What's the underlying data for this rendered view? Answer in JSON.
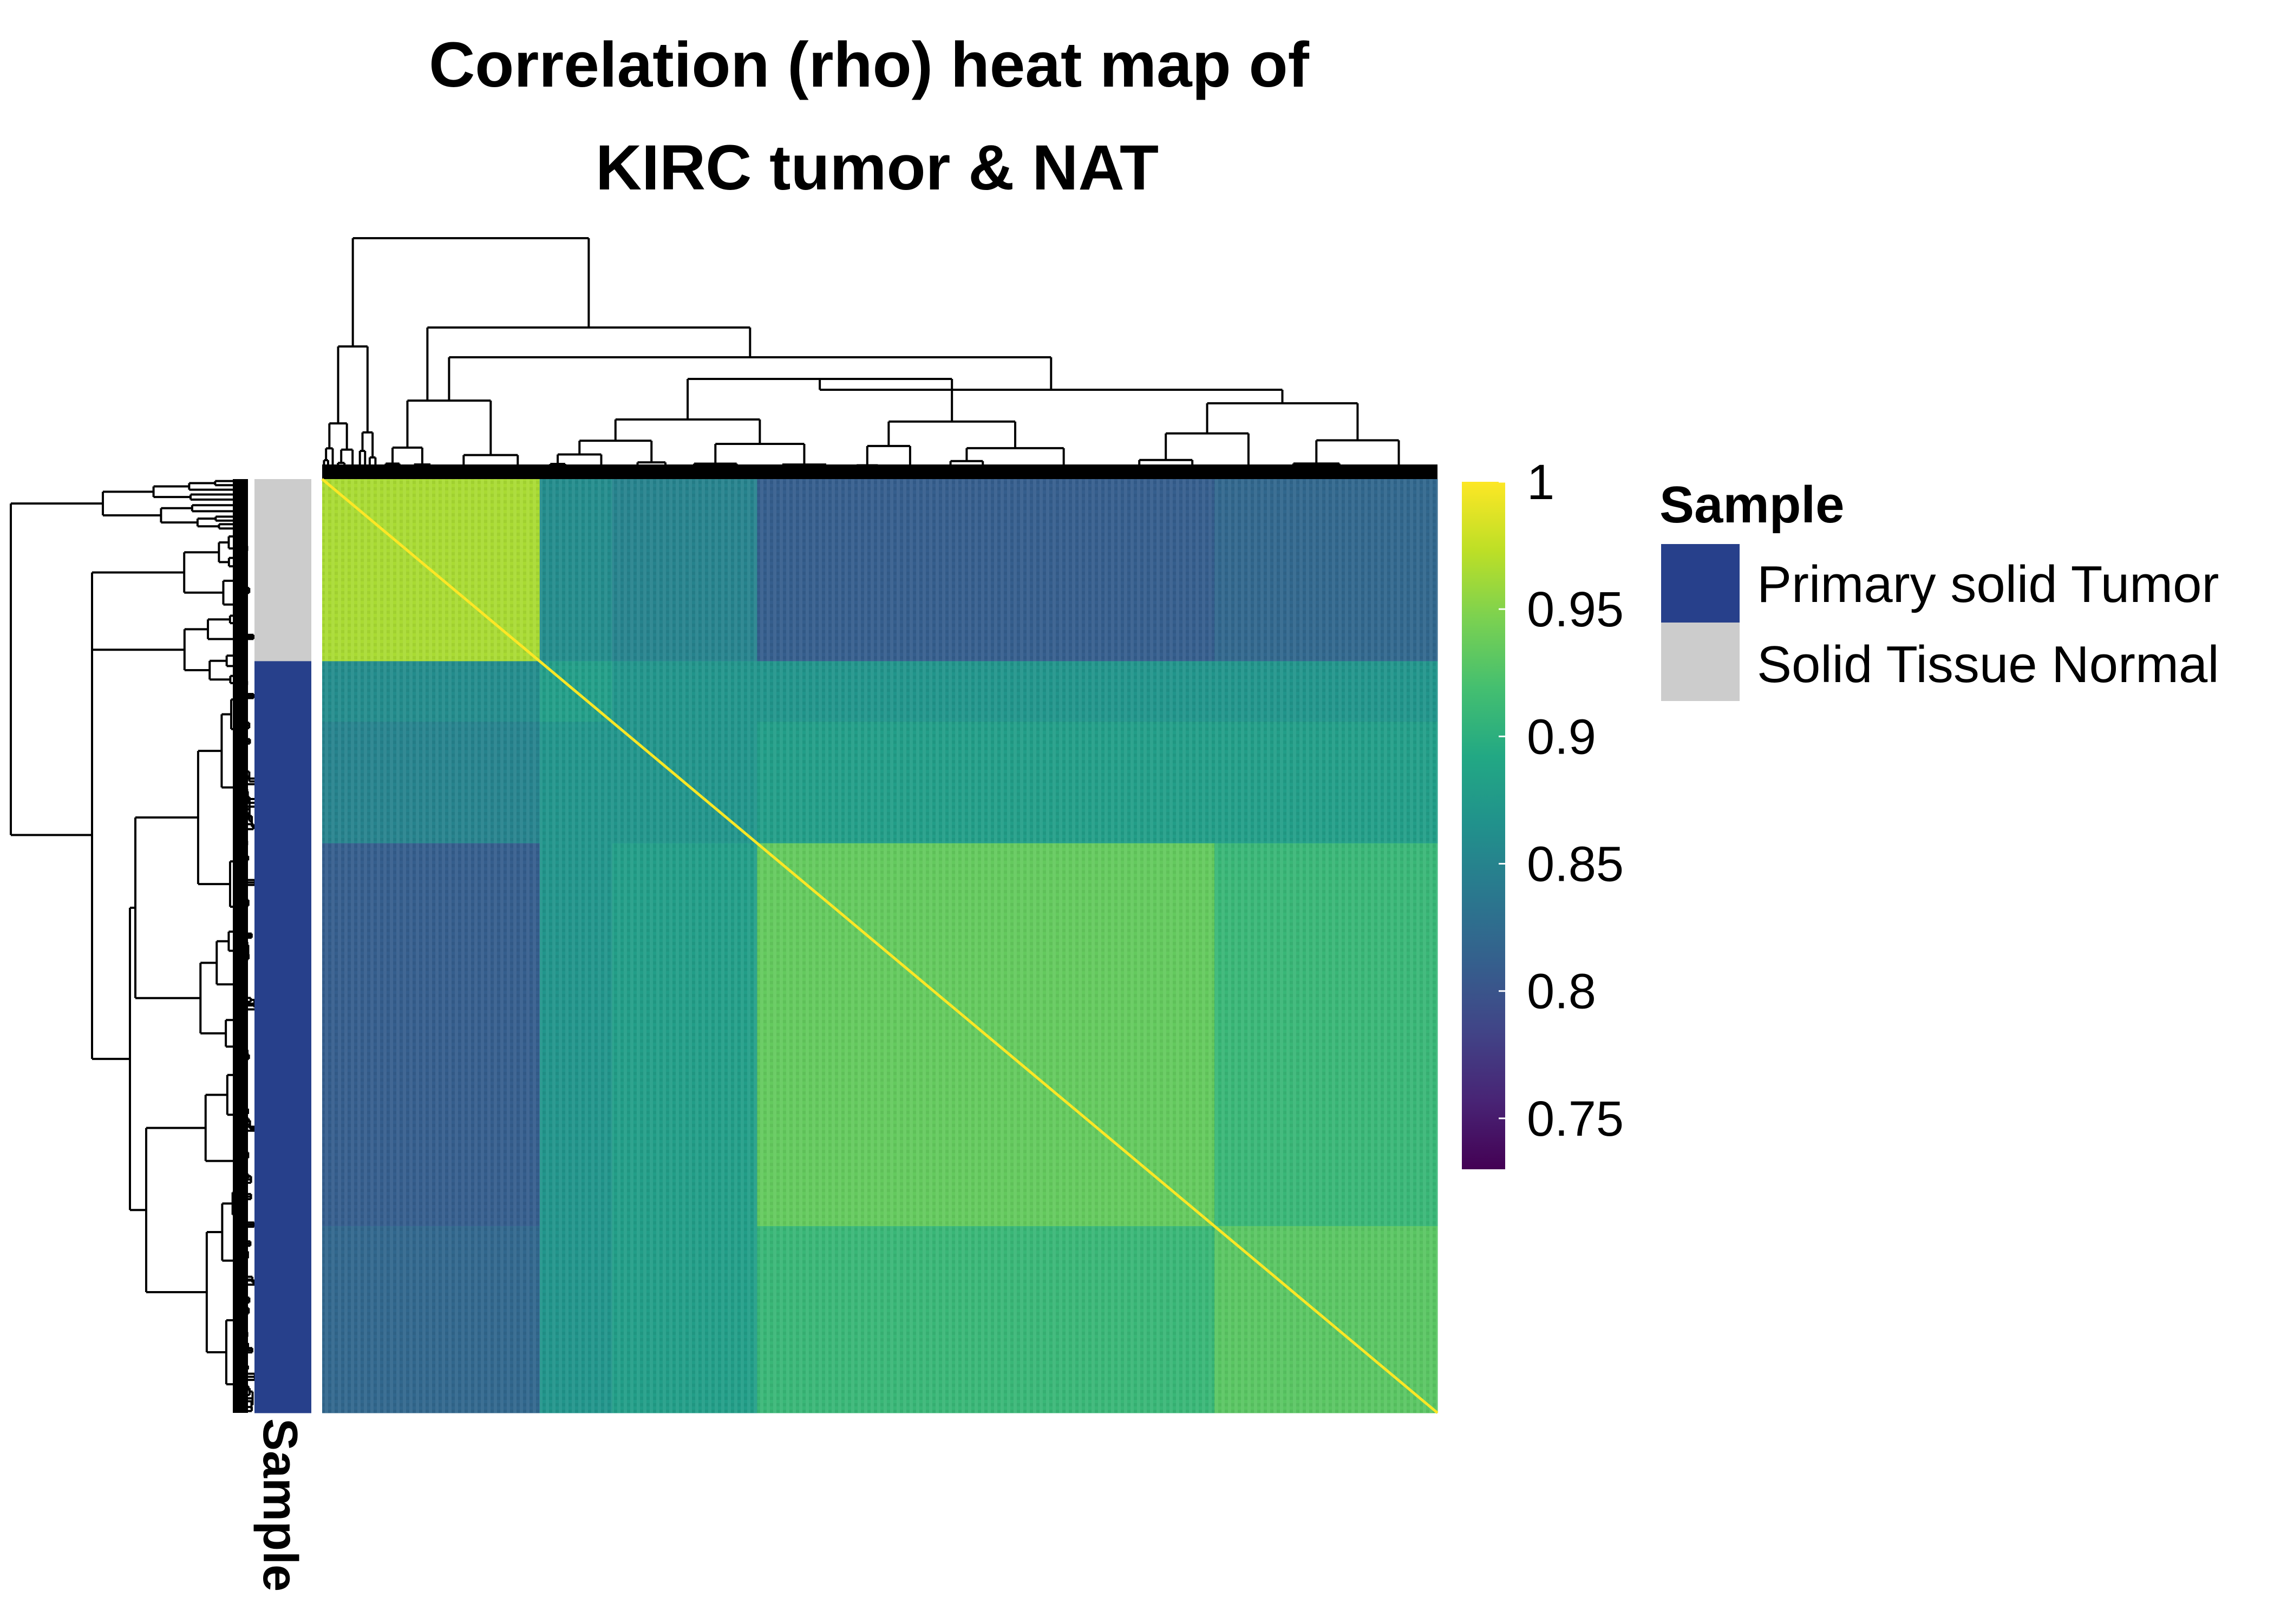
{
  "chart_data": {
    "type": "heatmap",
    "title": {
      "line1": "Correlation (rho) heat map of",
      "line2": "KIRC tumor & NAT"
    },
    "value_name": "rho",
    "color_scale": {
      "name": "viridis",
      "range": [
        0.73,
        1.0
      ],
      "ticks": [
        {
          "value": 1,
          "label": "1"
        },
        {
          "value": 0.95,
          "label": "0.95"
        },
        {
          "value": 0.9,
          "label": "0.9"
        },
        {
          "value": 0.85,
          "label": "0.85"
        },
        {
          "value": 0.8,
          "label": "0.8"
        },
        {
          "value": 0.75,
          "label": "0.75"
        }
      ]
    },
    "annotation": {
      "name": "Sample",
      "legend_title": "Sample",
      "categories": [
        {
          "label": "Primary solid Tumor",
          "color": "#27408b"
        },
        {
          "label": "Solid Tissue Normal",
          "color": "#cccccc"
        }
      ]
    },
    "blocks": [
      {
        "name": "normal-cluster",
        "order_start": 0.0,
        "order_end": 0.195,
        "sample": "Solid Tissue Normal",
        "within_rho": 0.965
      },
      {
        "name": "tumor-outlier-group",
        "order_start": 0.195,
        "order_end": 0.26,
        "sample": "Primary solid Tumor",
        "within_rho": 0.88
      },
      {
        "name": "tumor-low-group",
        "order_start": 0.26,
        "order_end": 0.39,
        "sample": "Primary solid Tumor",
        "within_rho": 0.87
      },
      {
        "name": "tumor-main-group",
        "order_start": 0.39,
        "order_end": 0.8,
        "sample": "Primary solid Tumor",
        "within_rho": 0.935
      },
      {
        "name": "tumor-second-group",
        "order_start": 0.8,
        "order_end": 1.0,
        "sample": "Primary solid Tumor",
        "within_rho": 0.93
      }
    ],
    "between_block_rho": [
      [
        0.965,
        0.86,
        0.85,
        0.81,
        0.82
      ],
      [
        0.86,
        0.88,
        0.87,
        0.87,
        0.87
      ],
      [
        0.85,
        0.87,
        0.87,
        0.88,
        0.88
      ],
      [
        0.81,
        0.87,
        0.88,
        0.935,
        0.91
      ],
      [
        0.82,
        0.87,
        0.88,
        0.91,
        0.93
      ]
    ],
    "diagonal_rho": 1.0
  }
}
